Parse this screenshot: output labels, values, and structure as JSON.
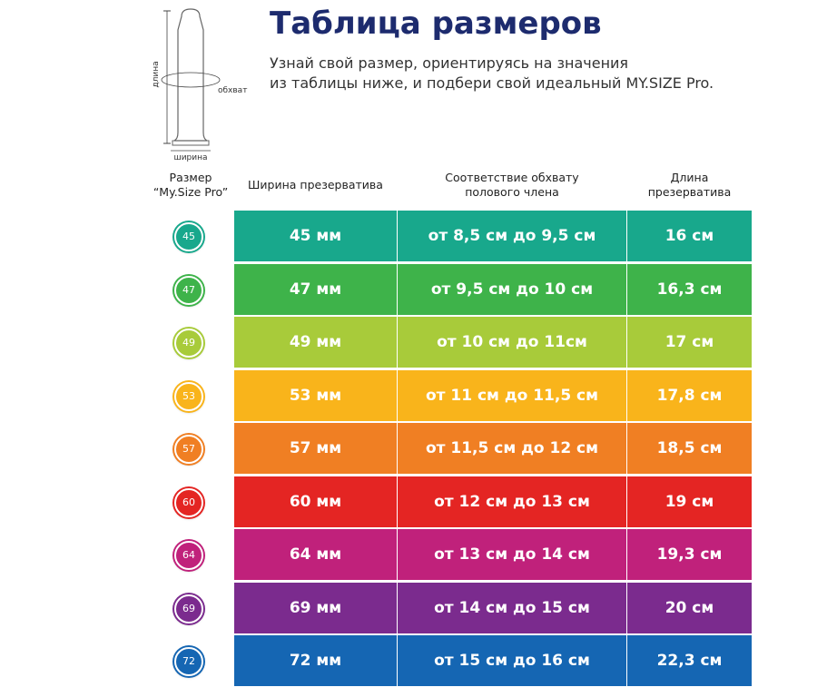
{
  "header": {
    "title": "Таблица размеров",
    "subtitle": [
      "Узнай свой размер, ориентируясь на значения",
      "из таблицы ниже, и подбери свой идеальный MY.SIZE Pro."
    ]
  },
  "diagram": {
    "length": "длина",
    "girth": "обхват",
    "width": "ширина"
  },
  "table": {
    "columns": [
      [
        "Размер",
        "“My.Size Pro”"
      ],
      [
        "Ширина презерватива"
      ],
      [
        "Соответствие обхвату",
        "полового члена"
      ],
      [
        "Длина",
        "презерватива"
      ]
    ],
    "rows": [
      [
        "45",
        "45 мм",
        "от 8,5 см до 9,5 см",
        "16 см"
      ],
      [
        "47",
        "47 мм",
        "от 9,5 см до 10 см",
        "16,3 см"
      ],
      [
        "49",
        "49 мм",
        "от 10 см до 11см",
        "17 см"
      ],
      [
        "53",
        "53 мм",
        "от 11 см до 11,5 см",
        "17,8 см"
      ],
      [
        "57",
        "57 мм",
        "от 11,5 см до 12 см",
        "18,5 см"
      ],
      [
        "60",
        "60 мм",
        "от 12 см до 13 см",
        "19 см"
      ],
      [
        "64",
        "64 мм",
        "от 13 см до 14 см",
        "19,3 см"
      ],
      [
        "69",
        "69 мм",
        "от 14 см до 15 см",
        "20 см"
      ],
      [
        "72",
        "72 мм",
        "от 15 см до 16 см",
        "22,3 см"
      ]
    ]
  }
}
